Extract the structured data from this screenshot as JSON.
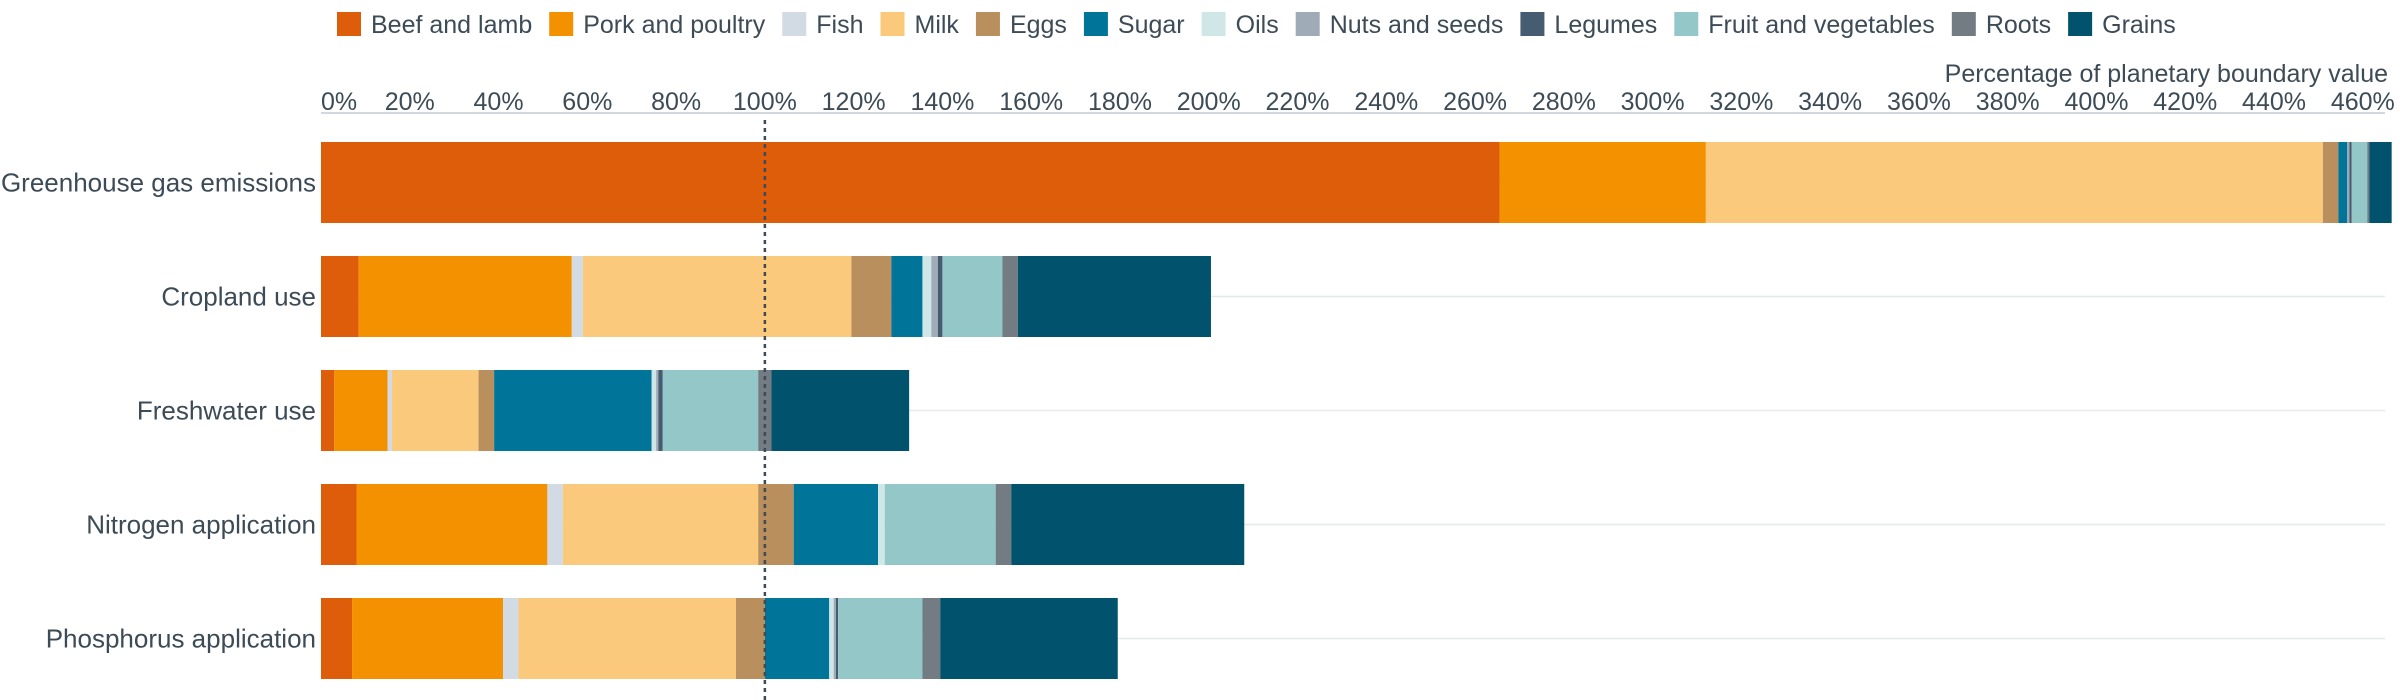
{
  "chart_data": {
    "type": "bar",
    "orientation": "horizontal",
    "stacked": true,
    "xlabel": "Percentage of planetary boundary value",
    "xlim": [
      0,
      465
    ],
    "x_ticks": [
      0,
      20,
      40,
      60,
      80,
      100,
      120,
      140,
      160,
      180,
      200,
      220,
      240,
      260,
      280,
      300,
      320,
      340,
      360,
      380,
      400,
      420,
      440,
      460
    ],
    "x_tick_labels": [
      "0%",
      "20%",
      "40%",
      "60%",
      "80%",
      "100%",
      "120%",
      "140%",
      "160%",
      "180%",
      "200%",
      "220%",
      "240%",
      "260%",
      "280%",
      "300%",
      "320%",
      "340%",
      "360%",
      "380%",
      "400%",
      "420%",
      "440%",
      "460%"
    ],
    "reference_line": 100,
    "legend_position": "top",
    "grid": "horizontal row lines",
    "categories": [
      "Greenhouse gas emissions",
      "Cropland use",
      "Freshwater use",
      "Nitrogen application",
      "Phosphorus application"
    ],
    "series": [
      {
        "name": "Beef and lamb",
        "color": "#de5d0a",
        "values": [
          265.5,
          8.5,
          3.0,
          8.0,
          7.0
        ]
      },
      {
        "name": "Pork and poultry",
        "color": "#f39100",
        "values": [
          46.5,
          48.0,
          12.0,
          43.0,
          34.0
        ]
      },
      {
        "name": "Fish",
        "color": "#d2dbe4",
        "values": [
          0.0,
          2.5,
          1.0,
          3.5,
          3.5
        ]
      },
      {
        "name": "Milk",
        "color": "#fbc97b",
        "values": [
          139.0,
          60.5,
          19.5,
          44.0,
          49.0
        ]
      },
      {
        "name": "Eggs",
        "color": "#b88f5d",
        "values": [
          3.5,
          9.0,
          3.5,
          8.0,
          6.5
        ]
      },
      {
        "name": "Sugar",
        "color": "#007599",
        "values": [
          2.0,
          7.0,
          35.5,
          19.0,
          14.5
        ]
      },
      {
        "name": "Oils",
        "color": "#cfe7e6",
        "values": [
          0.0,
          2.0,
          1.0,
          1.5,
          1.0
        ]
      },
      {
        "name": "Nuts and seeds",
        "color": "#a0abb8",
        "values": [
          0.5,
          1.5,
          0.5,
          0.0,
          0.5
        ]
      },
      {
        "name": "Legumes",
        "color": "#465c70",
        "values": [
          0.5,
          1.0,
          1.0,
          0.0,
          0.5
        ]
      },
      {
        "name": "Fruit and vegetables",
        "color": "#94c8c8",
        "values": [
          3.5,
          13.5,
          21.5,
          25.0,
          19.0
        ]
      },
      {
        "name": "Roots",
        "color": "#737b83",
        "values": [
          0.5,
          3.5,
          3.0,
          3.5,
          4.0
        ]
      },
      {
        "name": "Grains",
        "color": "#00526d",
        "values": [
          5.0,
          43.5,
          31.0,
          52.5,
          40.0
        ]
      }
    ]
  }
}
